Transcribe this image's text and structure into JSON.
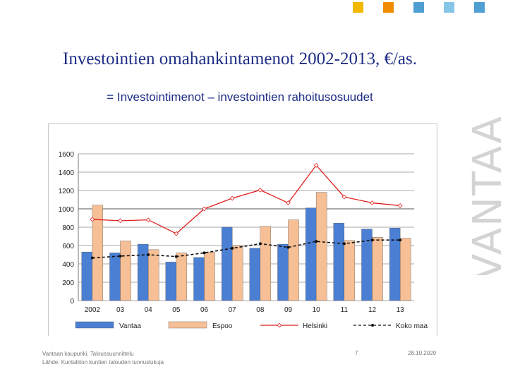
{
  "brand": {
    "wordmark": "VANTAA",
    "squares": [
      "#f2b800",
      "#f08a00",
      "#4f9fd3",
      "#86c4e8",
      "#4f9fd3"
    ]
  },
  "slide": {
    "title": "Investointien omahankintamenot 2002-2013, €/as.",
    "subtitle": "= Investointimenot – investointien rahoitusosuudet",
    "footer_source_1": "Vantaan kaupunki, Taloussuunnittelu",
    "footer_source_2": "Lähde: Kuntaliiton kuntien talouden tunnuslukuja",
    "page_number": "7",
    "date": "28.10.2020"
  },
  "chart_data": {
    "type": "bar",
    "categories": [
      "2002",
      "03",
      "04",
      "05",
      "06",
      "07",
      "08",
      "09",
      "10",
      "11",
      "12",
      "13"
    ],
    "ylim": [
      0,
      1600
    ],
    "yticks": [
      0,
      200,
      400,
      600,
      800,
      1000,
      1200,
      1400,
      1600
    ],
    "grid": true,
    "legend_position": "bottom",
    "series": [
      {
        "name": "Vantaa",
        "kind": "bar",
        "color": "#4a7fd4",
        "values": [
          530,
          520,
          615,
          420,
          470,
          800,
          570,
          615,
          1010,
          845,
          780,
          790
        ]
      },
      {
        "name": "Espoo",
        "kind": "bar",
        "color": "#f7bf96",
        "values": [
          1040,
          650,
          555,
          520,
          530,
          600,
          810,
          880,
          1180,
          655,
          690,
          680
        ]
      },
      {
        "name": "Helsinki",
        "kind": "line",
        "color": "#e02020",
        "values": [
          885,
          870,
          880,
          730,
          1000,
          1115,
          1205,
          1065,
          1475,
          1130,
          1065,
          1035
        ]
      },
      {
        "name": "Koko maa",
        "kind": "line",
        "color": "#111111",
        "values": [
          465,
          485,
          500,
          480,
          520,
          570,
          620,
          580,
          645,
          620,
          660,
          660
        ]
      }
    ]
  }
}
